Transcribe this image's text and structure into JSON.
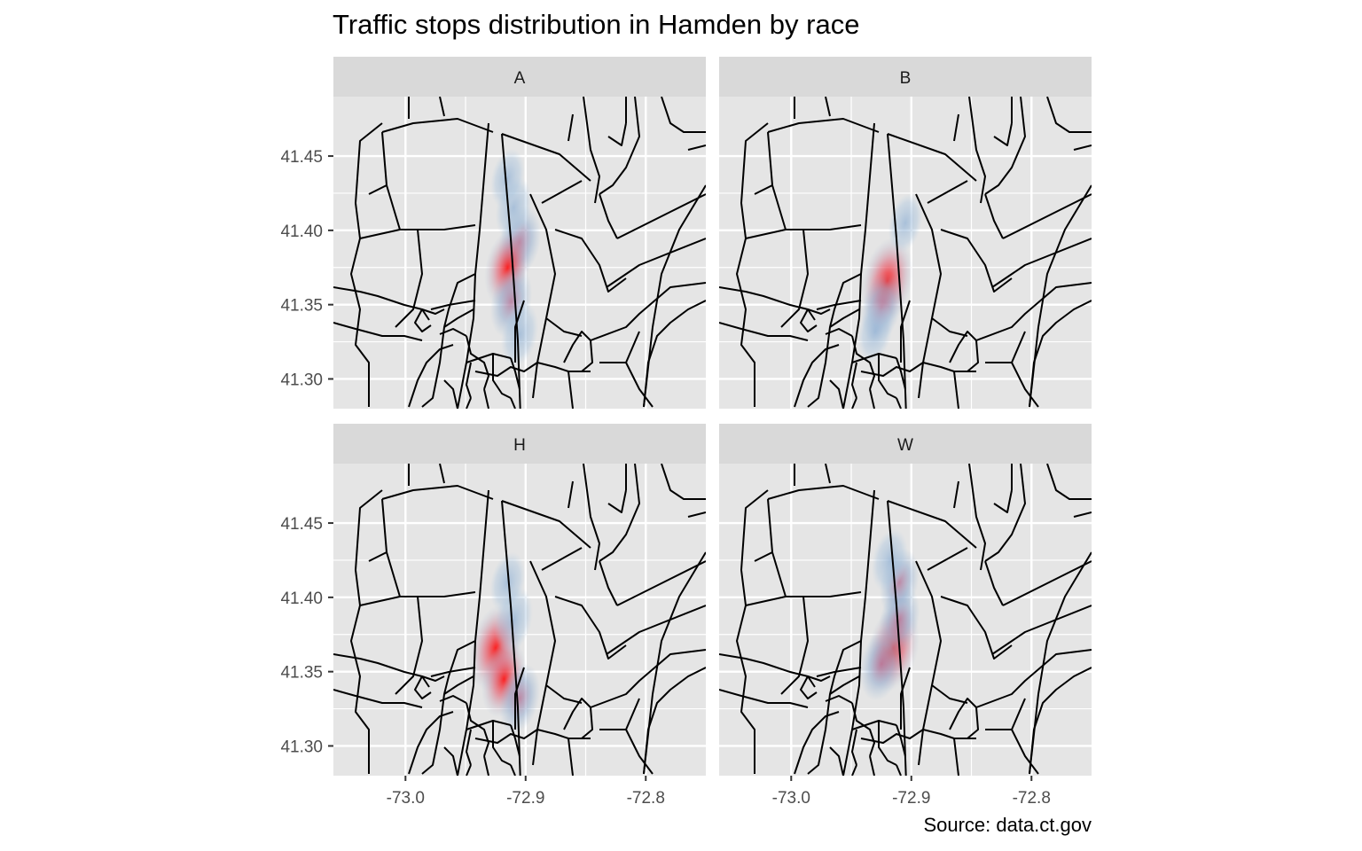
{
  "title": "Traffic stops distribution in Hamden by race",
  "caption": "Source: data.ct.gov",
  "chart_data": {
    "type": "heatmap",
    "subtype": "faceted 2D density over census-tract boundary map",
    "facet_layout": "2x2, shared axes",
    "xlim": [
      -73.06,
      -72.75
    ],
    "ylim": [
      41.28,
      41.49
    ],
    "x_ticks": [
      -73.0,
      -72.9,
      -72.8
    ],
    "x_tick_labels": [
      "-73.0",
      "-72.9",
      "-72.8"
    ],
    "y_ticks": [
      41.3,
      41.35,
      41.4,
      41.45
    ],
    "y_tick_labels": [
      "41.30",
      "41.35",
      "41.40",
      "41.45"
    ],
    "grid": true,
    "fill_scale": "low density light blue to high density red",
    "colors": {
      "panel_background": "#e5e5e5",
      "strip_background": "#d9d9d9",
      "grid": "#ffffff",
      "boundaries": "#000000",
      "density_low": "#9bbbd8",
      "density_high": "#ff0000"
    },
    "panels": [
      {
        "label": "A",
        "density_peaks": [
          {
            "x": -72.905,
            "y": 41.392,
            "level": 0.6
          },
          {
            "x": -72.915,
            "y": 41.375,
            "level": 0.75
          },
          {
            "x": -72.912,
            "y": 41.352,
            "level": 0.55
          },
          {
            "x": -72.91,
            "y": 41.415,
            "level": 0.3
          },
          {
            "x": -72.915,
            "y": 41.435,
            "level": 0.2
          },
          {
            "x": -72.905,
            "y": 41.33,
            "level": 0.35
          }
        ]
      },
      {
        "label": "B",
        "density_peaks": [
          {
            "x": -72.92,
            "y": 41.366,
            "level": 1.0
          },
          {
            "x": -72.925,
            "y": 41.348,
            "level": 0.5
          },
          {
            "x": -72.93,
            "y": 41.332,
            "level": 0.25
          },
          {
            "x": -72.905,
            "y": 41.405,
            "level": 0.2
          }
        ]
      },
      {
        "label": "H",
        "density_peaks": [
          {
            "x": -72.925,
            "y": 41.366,
            "level": 1.0
          },
          {
            "x": -72.918,
            "y": 41.345,
            "level": 0.7
          },
          {
            "x": -72.905,
            "y": 41.332,
            "level": 0.5
          },
          {
            "x": -72.91,
            "y": 41.385,
            "level": 0.4
          },
          {
            "x": -72.915,
            "y": 41.41,
            "level": 0.25
          }
        ]
      },
      {
        "label": "W",
        "density_peaks": [
          {
            "x": -72.915,
            "y": 41.366,
            "level": 1.0
          },
          {
            "x": -72.925,
            "y": 41.355,
            "level": 0.6
          },
          {
            "x": -72.91,
            "y": 41.385,
            "level": 0.5
          },
          {
            "x": -72.91,
            "y": 41.41,
            "level": 0.45
          },
          {
            "x": -72.918,
            "y": 41.425,
            "level": 0.3
          }
        ]
      }
    ]
  }
}
